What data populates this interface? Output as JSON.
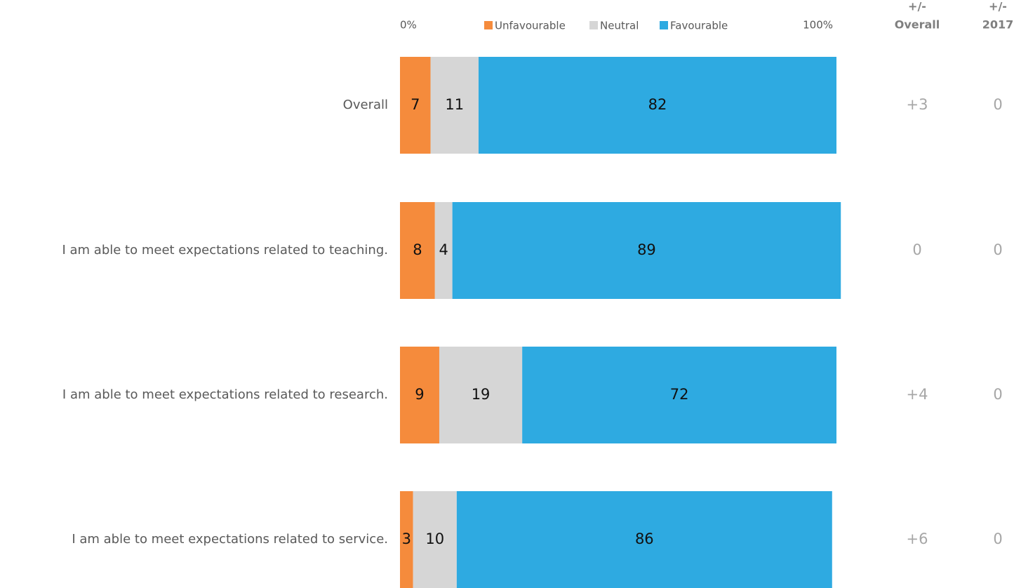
{
  "chart_data": {
    "type": "stacked-bar-horizontal",
    "categories": [
      "Overall",
      "I am able to meet expectations related to teaching.",
      "I am able to meet expectations related to research.",
      "I am able to meet expectations related to service."
    ],
    "series": [
      {
        "name": "Unfavourable",
        "color": "#f58b3c",
        "values": [
          7,
          8,
          9,
          3
        ]
      },
      {
        "name": "Neutral",
        "color": "#d6d6d6",
        "values": [
          11,
          4,
          19,
          10
        ]
      },
      {
        "name": "Favourable",
        "color": "#2eaae1",
        "values": [
          82,
          89,
          72,
          86
        ]
      }
    ],
    "xlim": [
      0,
      100
    ],
    "xticks": [
      {
        "value": 0,
        "label": "0%"
      },
      {
        "value": 100,
        "label": "100%"
      }
    ],
    "columns": [
      {
        "header": [
          "+/-",
          "Overall"
        ],
        "values": [
          3,
          0,
          4,
          6
        ],
        "value_labels": [
          "+3",
          "0",
          "+4",
          "+6"
        ]
      },
      {
        "header": [
          "+/-",
          "2017"
        ],
        "values": [
          0,
          0,
          0,
          0
        ]
      }
    ]
  }
}
